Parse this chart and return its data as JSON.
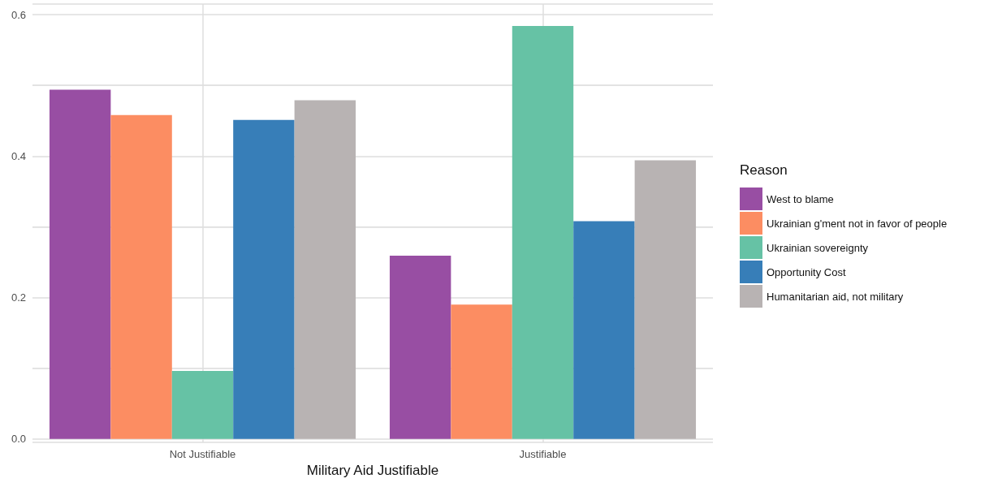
{
  "chart_data": {
    "type": "bar",
    "xlabel": "Military Aid Justifiable",
    "legend_title": "Reason",
    "categories": [
      "Not Justifiable",
      "Justifiable"
    ],
    "series": [
      {
        "name": "West to blame",
        "color": "#984ea3",
        "values": [
          0.494,
          0.259
        ]
      },
      {
        "name": "Ukrainian g'ment not in favor of people",
        "color": "#fc8d62",
        "values": [
          0.458,
          0.19
        ]
      },
      {
        "name": "Ukrainian sovereignty",
        "color": "#66c2a5",
        "values": [
          0.096,
          0.584
        ]
      },
      {
        "name": "Opportunity Cost",
        "color": "#377eb8",
        "values": [
          0.451,
          0.308
        ]
      },
      {
        "name": "Humanitarian aid, not military",
        "color": "#b8b3b3",
        "values": [
          0.479,
          0.394
        ]
      }
    ],
    "ylim": [
      -0.005,
      0.615
    ],
    "yticks": [
      {
        "value": 0,
        "label": "0.0"
      },
      {
        "value": 0.1,
        "label": null
      },
      {
        "value": 0.2,
        "label": "0.2"
      },
      {
        "value": 0.3,
        "label": null
      },
      {
        "value": 0.4,
        "label": "0.4"
      },
      {
        "value": 0.5,
        "label": null
      },
      {
        "value": 0.6,
        "label": "0.6"
      }
    ],
    "grid": true,
    "legend": "right"
  }
}
